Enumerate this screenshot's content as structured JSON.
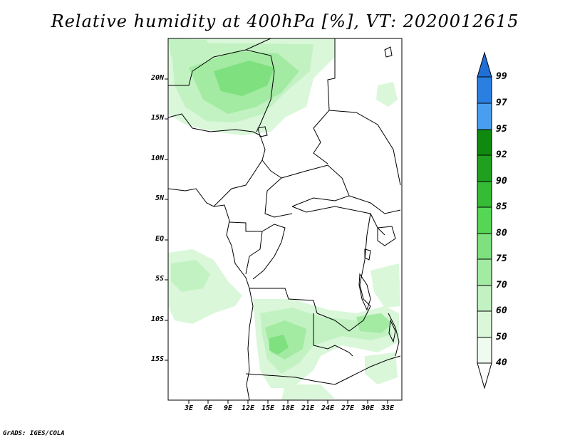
{
  "title": "Relative humidity at 400hPa [%], VT: 2020012615",
  "lat_labels": [
    "20N",
    "15N",
    "10N",
    "5N",
    "EQ",
    "5S",
    "10S",
    "15S"
  ],
  "lon_labels": [
    "3E",
    "6E",
    "9E",
    "12E",
    "15E",
    "18E",
    "21E",
    "24E",
    "27E",
    "30E",
    "33E"
  ],
  "colorbar": {
    "levels": [
      "99",
      "97",
      "95",
      "92",
      "90",
      "85",
      "80",
      "75",
      "70",
      "60",
      "50",
      "40"
    ],
    "colors": {
      "above_99": "#1f6fd6",
      "97_99": "#2b7fe0",
      "95_97": "#4a9ef0",
      "92_95": "#0f8a0f",
      "90_92": "#1fa01f",
      "85_90": "#35bb35",
      "80_85": "#55d655",
      "75_80": "#7ee07e",
      "70_75": "#a3eaa3",
      "60_70": "#c2f2c2",
      "50_60": "#daf7da",
      "40_50": "#eefbee",
      "below_40": "#ffffff"
    }
  },
  "credit": "GrADS: IGES/COLA"
}
